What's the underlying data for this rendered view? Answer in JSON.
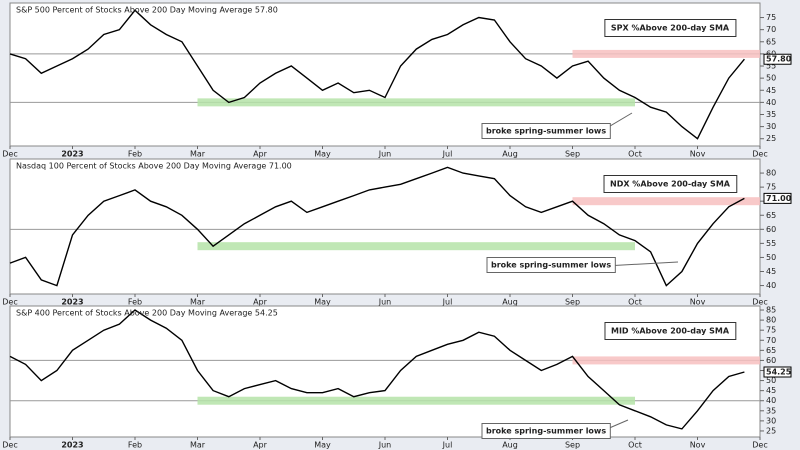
{
  "chart_data": [
    {
      "type": "line",
      "title": "S&P 500 Percent of Stocks Above 200 Day Moving Average 57.80",
      "label": "SPX %Above 200-day SMA",
      "annotation": "broke spring-summer lows",
      "categories": [
        "Dec",
        null,
        null,
        null,
        "2023",
        null,
        null,
        null,
        "Feb",
        null,
        null,
        null,
        "Mar",
        null,
        null,
        null,
        "Apr",
        null,
        null,
        null,
        "May",
        null,
        null,
        null,
        "Jun",
        null,
        null,
        null,
        "Jul",
        null,
        null,
        null,
        "Aug",
        null,
        null,
        null,
        "Sep",
        null,
        null,
        null,
        "Oct",
        null,
        null,
        null,
        "Nov",
        null,
        null,
        null,
        "Dec"
      ],
      "values": [
        60,
        58,
        52,
        55,
        58,
        62,
        68,
        70,
        78,
        72,
        68,
        65,
        55,
        45,
        40,
        42,
        48,
        52,
        55,
        50,
        45,
        48,
        44,
        45,
        42,
        55,
        62,
        66,
        68,
        72,
        75,
        74,
        65,
        58,
        55,
        50,
        55,
        57,
        50,
        45,
        42,
        38,
        36,
        30,
        25,
        38,
        50,
        57.8,
        null
      ],
      "value_labels": [
        null,
        null,
        null,
        null,
        null,
        null,
        null,
        null,
        null,
        null,
        null,
        null,
        null,
        null,
        null,
        null,
        null,
        null,
        null,
        null,
        null,
        null,
        null,
        null,
        null,
        null,
        null,
        null,
        null,
        null,
        null,
        null,
        null,
        null,
        null,
        null,
        null,
        null,
        null,
        null,
        null,
        null,
        null,
        null,
        null,
        null,
        null,
        "57.80",
        null
      ],
      "color": "#000000",
      "ylim": [
        22,
        81
      ],
      "yticks": [
        25,
        30,
        35,
        40,
        45,
        50,
        55,
        60,
        65,
        70,
        75
      ],
      "reference_lines": [
        40,
        60
      ],
      "bands": [
        {
          "y": 40,
          "from": "Mar",
          "to": "Oct",
          "color": "#b5e3a8"
        },
        {
          "y": 60,
          "from": "Sep",
          "to": "Dec",
          "color": "#f7c0c0"
        }
      ]
    },
    {
      "type": "line",
      "title": "Nasdaq 100 Percent of Stocks Above 200 Day Moving Average 71.00",
      "label": "NDX %Above 200-day SMA",
      "annotation": "broke spring-summer lows",
      "categories": [
        "Dec",
        null,
        null,
        null,
        "2023",
        null,
        null,
        null,
        "Feb",
        null,
        null,
        null,
        "Mar",
        null,
        null,
        null,
        "Apr",
        null,
        null,
        null,
        "May",
        null,
        null,
        null,
        "Jun",
        null,
        null,
        null,
        "Jul",
        null,
        null,
        null,
        "Aug",
        null,
        null,
        null,
        "Sep",
        null,
        null,
        null,
        "Oct",
        null,
        null,
        null,
        "Nov",
        null,
        null,
        null,
        "Dec"
      ],
      "values": [
        48,
        50,
        42,
        40,
        58,
        65,
        70,
        72,
        74,
        70,
        68,
        65,
        60,
        54,
        58,
        62,
        65,
        68,
        70,
        66,
        68,
        70,
        72,
        74,
        75,
        76,
        78,
        80,
        82,
        80,
        79,
        78,
        72,
        68,
        66,
        68,
        70,
        65,
        62,
        58,
        56,
        52,
        40,
        45,
        55,
        62,
        68,
        71,
        null
      ],
      "value_labels": [
        null,
        null,
        null,
        null,
        null,
        null,
        null,
        null,
        null,
        null,
        null,
        null,
        null,
        null,
        null,
        null,
        null,
        null,
        null,
        null,
        null,
        null,
        null,
        null,
        null,
        null,
        null,
        null,
        null,
        null,
        null,
        null,
        null,
        null,
        null,
        null,
        null,
        null,
        null,
        null,
        null,
        null,
        null,
        null,
        null,
        null,
        null,
        "71.00",
        null
      ],
      "color": "#000000",
      "ylim": [
        37,
        85
      ],
      "yticks": [
        40,
        45,
        50,
        55,
        60,
        65,
        70,
        75,
        80
      ],
      "reference_lines": [
        60
      ],
      "bands": [
        {
          "y": 54,
          "from": "Mar",
          "to": "Oct",
          "color": "#b5e3a8"
        },
        {
          "y": 70,
          "from": "Sep",
          "to": "Dec",
          "color": "#f7c0c0"
        }
      ]
    },
    {
      "type": "line",
      "title": "S&P 400 Percent of Stocks Above 200 Day Moving Average 54.25",
      "label": "MID %Above 200-day SMA",
      "annotation": "broke spring-summer lows",
      "categories": [
        "Dec",
        null,
        null,
        null,
        "2023",
        null,
        null,
        null,
        "Feb",
        null,
        null,
        null,
        "Mar",
        null,
        null,
        null,
        "Apr",
        null,
        null,
        null,
        "May",
        null,
        null,
        null,
        "Jun",
        null,
        null,
        null,
        "Jul",
        null,
        null,
        null,
        "Aug",
        null,
        null,
        null,
        "Sep",
        null,
        null,
        null,
        "Oct",
        null,
        null,
        null,
        "Nov",
        null,
        null,
        null,
        "Dec"
      ],
      "values": [
        62,
        58,
        50,
        55,
        65,
        70,
        75,
        78,
        85,
        80,
        76,
        70,
        55,
        45,
        42,
        46,
        48,
        50,
        46,
        44,
        44,
        46,
        42,
        44,
        45,
        55,
        62,
        65,
        68,
        70,
        74,
        72,
        65,
        60,
        55,
        58,
        62,
        52,
        45,
        38,
        35,
        32,
        28,
        26,
        35,
        45,
        52,
        54.25,
        null
      ],
      "value_labels": [
        null,
        null,
        null,
        null,
        null,
        null,
        null,
        null,
        null,
        null,
        null,
        null,
        null,
        null,
        null,
        null,
        null,
        null,
        null,
        null,
        null,
        null,
        null,
        null,
        null,
        null,
        null,
        null,
        null,
        null,
        null,
        null,
        null,
        null,
        null,
        null,
        null,
        null,
        null,
        null,
        null,
        null,
        null,
        null,
        null,
        null,
        null,
        "54.25",
        null
      ],
      "color": "#000000",
      "ylim": [
        22,
        87
      ],
      "yticks": [
        25,
        30,
        35,
        40,
        45,
        50,
        55,
        60,
        65,
        70,
        75,
        80,
        85
      ],
      "reference_lines": [
        40,
        60
      ],
      "bands": [
        {
          "y": 40,
          "from": "Mar",
          "to": "Oct",
          "color": "#b5e3a8"
        },
        {
          "y": 60,
          "from": "Sep",
          "to": "Dec",
          "color": "#f7c0c0"
        }
      ]
    }
  ]
}
